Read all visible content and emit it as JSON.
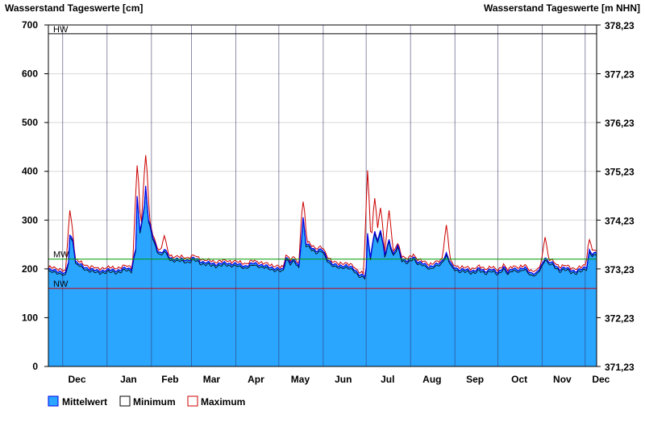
{
  "chart_data": {
    "type": "area",
    "left_axis_title": "Wasserstand Tageswerte [cm]",
    "right_axis_title": "Wasserstand Tageswerte [m NHN]",
    "ylim": [
      0,
      700
    ],
    "y_ticks": [
      0,
      100,
      200,
      300,
      400,
      500,
      600,
      700
    ],
    "y_tick_labels": [
      "0",
      "100",
      "200",
      "300",
      "400",
      "500",
      "600",
      "700"
    ],
    "right_tick_labels": [
      "371,23",
      "372,23",
      "373,23",
      "374,23",
      "375,23",
      "376,23",
      "377,23",
      "378,23"
    ],
    "x_range": [
      "2021-11-21",
      "2022-12-09"
    ],
    "month_labels": [
      {
        "label": "Dec",
        "date": "2021-12-11"
      },
      {
        "label": "Jan",
        "date": "2022-01-16"
      },
      {
        "label": "Feb",
        "date": "2022-02-14"
      },
      {
        "label": "Mar",
        "date": "2022-03-15"
      },
      {
        "label": "Apr",
        "date": "2022-04-15"
      },
      {
        "label": "May",
        "date": "2022-05-16"
      },
      {
        "label": "Jun",
        "date": "2022-06-15"
      },
      {
        "label": "Jul",
        "date": "2022-07-16"
      },
      {
        "label": "Aug",
        "date": "2022-08-16"
      },
      {
        "label": "Sep",
        "date": "2022-09-15"
      },
      {
        "label": "Oct",
        "date": "2022-10-16"
      },
      {
        "label": "Nov",
        "date": "2022-11-15"
      },
      {
        "label": "Dec",
        "date": "2022-12-12"
      }
    ],
    "month_dividers": [
      "2021-12-01",
      "2022-01-01",
      "2022-02-01",
      "2022-03-01",
      "2022-04-01",
      "2022-05-01",
      "2022-06-01",
      "2022-07-01",
      "2022-08-01",
      "2022-09-01",
      "2022-10-01",
      "2022-11-01",
      "2022-12-01"
    ],
    "reference_lines": [
      {
        "label": "HW",
        "value": 682,
        "color": "#000000"
      },
      {
        "label": "MW",
        "value": 220,
        "color": "#009900"
      },
      {
        "label": "NW",
        "value": 160,
        "color": "#cc0000"
      }
    ],
    "grid": true,
    "legend_position": "bottom-left",
    "series_styles": {
      "mean": {
        "fill": "#2aa6ff",
        "line": "#0000ee"
      },
      "min": {
        "line": "#000000"
      },
      "max": {
        "line": "#cc0000"
      }
    },
    "mean_keypoints": [
      [
        "2021-11-21",
        198
      ],
      [
        "2021-11-25",
        197
      ],
      [
        "2021-11-29",
        195
      ],
      [
        "2021-12-03",
        190
      ],
      [
        "2021-12-05",
        215
      ],
      [
        "2021-12-06",
        268
      ],
      [
        "2021-12-08",
        262
      ],
      [
        "2021-12-10",
        215
      ],
      [
        "2021-12-15",
        205
      ],
      [
        "2021-12-20",
        200
      ],
      [
        "2021-12-25",
        196
      ],
      [
        "2021-12-30",
        197
      ],
      [
        "2022-01-04",
        198
      ],
      [
        "2022-01-10",
        197
      ],
      [
        "2022-01-14",
        202
      ],
      [
        "2022-01-18",
        200
      ],
      [
        "2022-01-21",
        240
      ],
      [
        "2022-01-22",
        350
      ],
      [
        "2022-01-24",
        275
      ],
      [
        "2022-01-27",
        330
      ],
      [
        "2022-01-28",
        370
      ],
      [
        "2022-01-30",
        300
      ],
      [
        "2022-02-02",
        265
      ],
      [
        "2022-02-05",
        240
      ],
      [
        "2022-02-08",
        232
      ],
      [
        "2022-02-10",
        240
      ],
      [
        "2022-02-14",
        222
      ],
      [
        "2022-02-20",
        220
      ],
      [
        "2022-02-26",
        218
      ],
      [
        "2022-03-03",
        222
      ],
      [
        "2022-03-08",
        215
      ],
      [
        "2022-03-13",
        212
      ],
      [
        "2022-03-18",
        210
      ],
      [
        "2022-03-25",
        212
      ],
      [
        "2022-04-01",
        210
      ],
      [
        "2022-04-08",
        206
      ],
      [
        "2022-04-14",
        212
      ],
      [
        "2022-04-20",
        207
      ],
      [
        "2022-04-26",
        203
      ],
      [
        "2022-05-01",
        200
      ],
      [
        "2022-05-04",
        198
      ],
      [
        "2022-05-06",
        225
      ],
      [
        "2022-05-09",
        215
      ],
      [
        "2022-05-12",
        218
      ],
      [
        "2022-05-15",
        205
      ],
      [
        "2022-05-18",
        305
      ],
      [
        "2022-05-20",
        252
      ],
      [
        "2022-05-23",
        245
      ],
      [
        "2022-05-27",
        238
      ],
      [
        "2022-05-31",
        240
      ],
      [
        "2022-06-04",
        220
      ],
      [
        "2022-06-08",
        210
      ],
      [
        "2022-06-12",
        205
      ],
      [
        "2022-06-17",
        208
      ],
      [
        "2022-06-22",
        200
      ],
      [
        "2022-06-26",
        190
      ],
      [
        "2022-06-30",
        185
      ],
      [
        "2022-07-01",
        200
      ],
      [
        "2022-07-02",
        270
      ],
      [
        "2022-07-04",
        225
      ],
      [
        "2022-07-07",
        280
      ],
      [
        "2022-07-09",
        255
      ],
      [
        "2022-07-11",
        280
      ],
      [
        "2022-07-14",
        230
      ],
      [
        "2022-07-17",
        260
      ],
      [
        "2022-07-20",
        228
      ],
      [
        "2022-07-23",
        248
      ],
      [
        "2022-07-26",
        222
      ],
      [
        "2022-07-30",
        215
      ],
      [
        "2022-08-03",
        225
      ],
      [
        "2022-08-06",
        215
      ],
      [
        "2022-08-10",
        210
      ],
      [
        "2022-08-14",
        205
      ],
      [
        "2022-08-18",
        208
      ],
      [
        "2022-08-22",
        212
      ],
      [
        "2022-08-26",
        232
      ],
      [
        "2022-08-30",
        205
      ],
      [
        "2022-09-03",
        200
      ],
      [
        "2022-09-08",
        198
      ],
      [
        "2022-09-13",
        196
      ],
      [
        "2022-09-18",
        200
      ],
      [
        "2022-09-22",
        195
      ],
      [
        "2022-09-26",
        200
      ],
      [
        "2022-10-01",
        192
      ],
      [
        "2022-10-05",
        205
      ],
      [
        "2022-10-08",
        192
      ],
      [
        "2022-10-12",
        202
      ],
      [
        "2022-10-16",
        198
      ],
      [
        "2022-10-20",
        202
      ],
      [
        "2022-10-24",
        192
      ],
      [
        "2022-10-28",
        190
      ],
      [
        "2022-11-01",
        210
      ],
      [
        "2022-11-03",
        225
      ],
      [
        "2022-11-05",
        215
      ],
      [
        "2022-11-09",
        210
      ],
      [
        "2022-11-13",
        200
      ],
      [
        "2022-11-17",
        202
      ],
      [
        "2022-11-21",
        198
      ],
      [
        "2022-11-25",
        195
      ],
      [
        "2022-11-29",
        200
      ],
      [
        "2022-12-02",
        205
      ],
      [
        "2022-12-04",
        238
      ],
      [
        "2022-12-06",
        230
      ],
      [
        "2022-12-09",
        232
      ]
    ],
    "max_spikes": [
      [
        "2021-12-06",
        320
      ],
      [
        "2022-01-22",
        412
      ],
      [
        "2022-01-28",
        433
      ],
      [
        "2022-02-10",
        268
      ],
      [
        "2022-05-18",
        338
      ],
      [
        "2022-07-02",
        402
      ],
      [
        "2022-07-07",
        345
      ],
      [
        "2022-07-11",
        325
      ],
      [
        "2022-07-17",
        320
      ],
      [
        "2022-08-26",
        290
      ],
      [
        "2022-11-03",
        265
      ],
      [
        "2022-12-04",
        260
      ]
    ]
  },
  "legend": {
    "mean_label": "Mittelwert",
    "min_label": "Minimum",
    "max_label": "Maximum"
  }
}
